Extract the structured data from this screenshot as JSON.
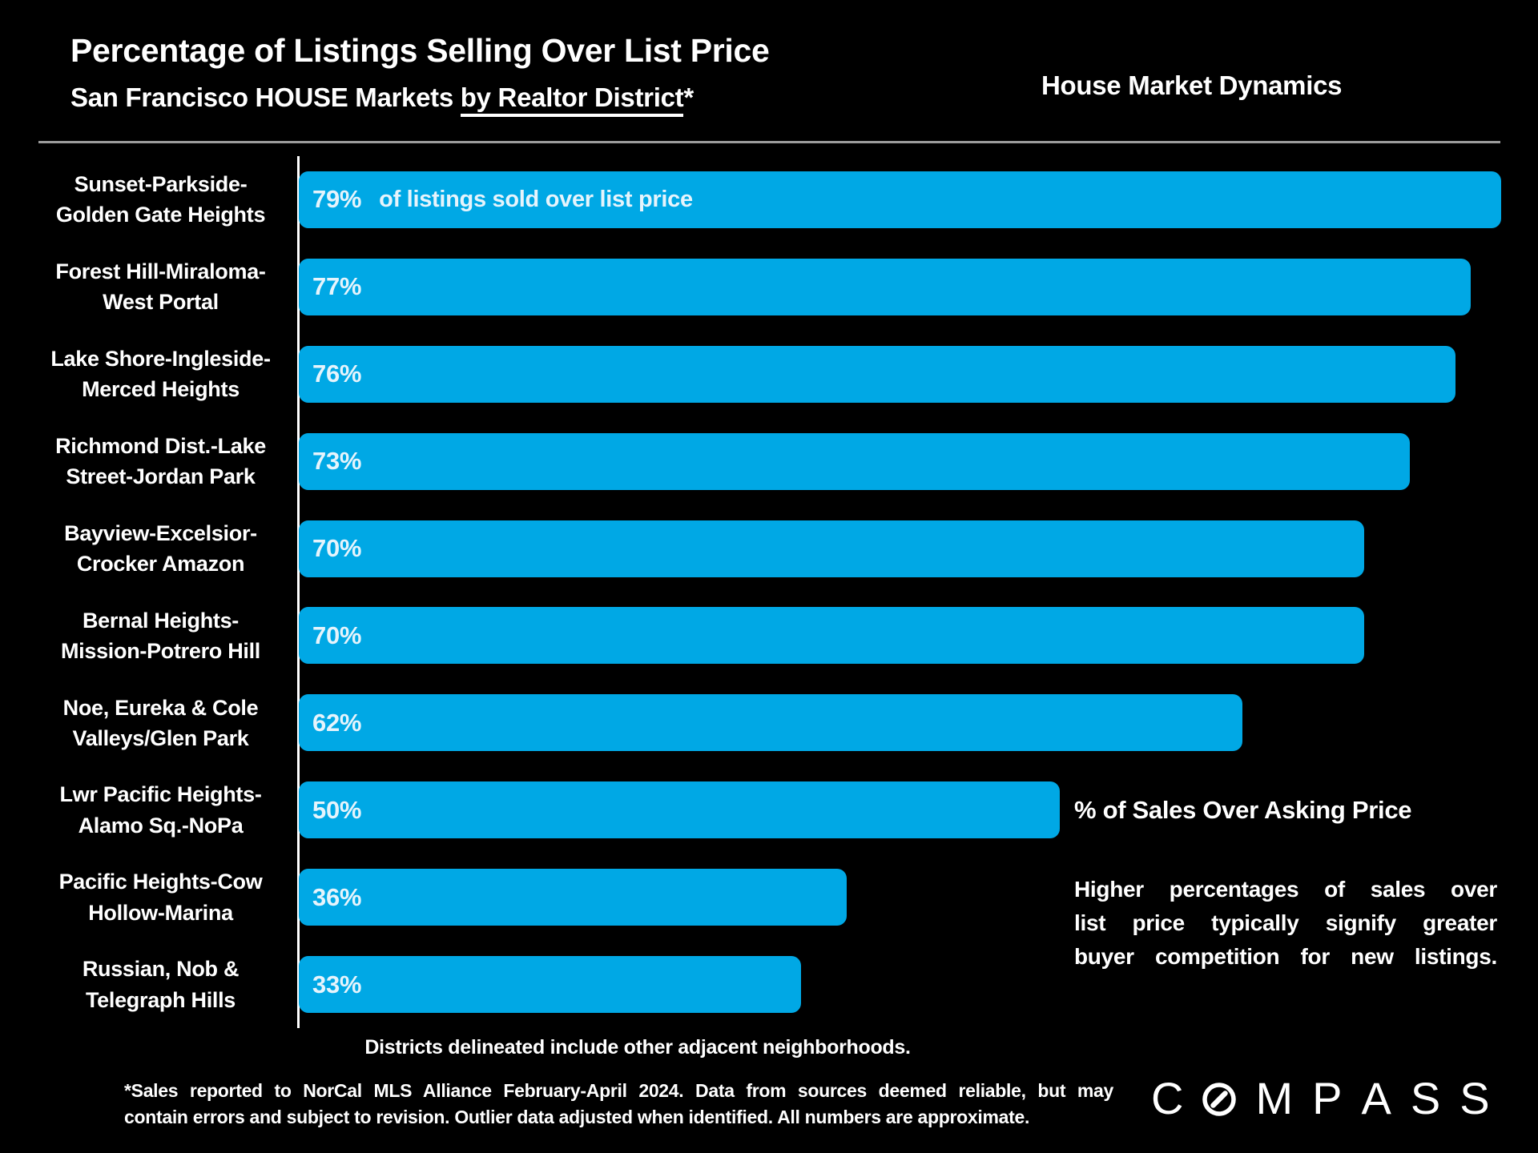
{
  "header": {
    "title": "Percentage of Listings Selling Over List Price",
    "subtitle_prefix": "San Francisco HOUSE Markets ",
    "subtitle_underlined": "by Realtor District",
    "subtitle_suffix": "*",
    "right_title": "House Market Dynamics"
  },
  "chart_data": {
    "type": "bar",
    "orientation": "horizontal",
    "unit": "%",
    "xlim": [
      0,
      80
    ],
    "grid": false,
    "title": "Percentage of Listings Selling Over List Price — San Francisco HOUSE Markets by Realtor District",
    "value_axis_label": "% of Sales Over Asking Price",
    "categories": [
      "Sunset-Parkside-Golden Gate Heights",
      "Forest Hill-Miraloma-West Portal",
      "Lake Shore-Ingleside-Merced Heights",
      "Richmond Dist.-Lake Street-Jordan Park",
      "Bayview-Excelsior-Crocker Amazon",
      "Bernal Heights-Mission-Potrero Hill",
      "Noe, Eureka & Cole Valleys/Glen Park",
      "Lwr Pacific Heights-Alamo Sq.-NoPa",
      "Pacific Heights-Cow Hollow-Marina",
      "Russian, Nob & Telegraph Hills"
    ],
    "values": [
      79,
      77,
      76,
      73,
      70,
      70,
      62,
      50,
      36,
      33
    ],
    "rows": [
      {
        "label_lines": [
          "Sunset-Parkside-",
          "Golden Gate Heights"
        ],
        "value": 79,
        "value_label": "79%",
        "annotation": "of listings sold over list price"
      },
      {
        "label_lines": [
          "Forest Hill-Miraloma-",
          "West Portal"
        ],
        "value": 77,
        "value_label": "77%"
      },
      {
        "label_lines": [
          "Lake Shore-Ingleside-",
          "Merced Heights"
        ],
        "value": 76,
        "value_label": "76%"
      },
      {
        "label_lines": [
          "Richmond Dist.-Lake",
          "Street-Jordan Park"
        ],
        "value": 73,
        "value_label": "73%"
      },
      {
        "label_lines": [
          "Bayview-Excelsior-",
          "Crocker Amazon"
        ],
        "value": 70,
        "value_label": "70%"
      },
      {
        "label_lines": [
          "Bernal Heights-",
          "Mission-Potrero Hill"
        ],
        "value": 70,
        "value_label": "70%"
      },
      {
        "label_lines": [
          "Noe, Eureka & Cole",
          "Valleys/Glen Park"
        ],
        "value": 62,
        "value_label": "62%"
      },
      {
        "label_lines": [
          "Lwr Pacific Heights-",
          "Alamo Sq.-NoPa"
        ],
        "value": 50,
        "value_label": "50%"
      },
      {
        "label_lines": [
          "Pacific Heights-Cow",
          "Hollow-Marina"
        ],
        "value": 36,
        "value_label": "36%"
      },
      {
        "label_lines": [
          "Russian, Nob &",
          "Telegraph Hills"
        ],
        "value": 33,
        "value_label": "33%"
      }
    ]
  },
  "legend": {
    "title": "% of Sales Over Asking Price",
    "description": "Higher percentages of sales over\nlist price typically signify greater\nbuyer competition for new listings."
  },
  "notes": {
    "districts": "Districts delineated include other adjacent neighborhoods.",
    "footnote_line1": "*Sales reported to NorCal MLS Alliance February-April 2024. Data from sources deemed reliable, but may",
    "footnote_line2": "contain errors and subject to revision. Outlier data adjusted when identified. All numbers are approximate."
  },
  "logo": {
    "name": "COMPASS",
    "letters": [
      "C",
      "O",
      "M",
      "P",
      "A",
      "S",
      "S"
    ]
  },
  "colors": {
    "bg": "#000000",
    "bar_blue": "#00A8E5",
    "bar_text": "#E6F4FC",
    "line_gray": "#9C9C9C",
    "text_white": "#FFFFFF"
  }
}
